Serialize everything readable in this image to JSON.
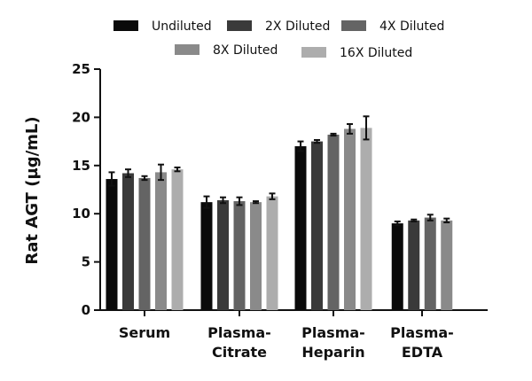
{
  "chart_data": {
    "type": "bar",
    "title": "",
    "xlabel": "",
    "ylabel": "Rat AGT (µg/mL)",
    "ylim": [
      0,
      25
    ],
    "yticks": [
      0,
      5,
      10,
      15,
      20,
      25
    ],
    "categories": [
      [
        "Serum"
      ],
      [
        "Plasma-",
        "Citrate"
      ],
      [
        "Plasma-",
        "Heparin"
      ],
      [
        "Plasma-",
        "EDTA"
      ]
    ],
    "series": [
      {
        "name": "Undiluted",
        "color": "#0a0a0a",
        "values": [
          13.6,
          11.2,
          17.0,
          9.0
        ],
        "errors": [
          0.7,
          0.6,
          0.5,
          0.2
        ]
      },
      {
        "name": "2X Diluted",
        "color": "#3a3a3a",
        "values": [
          14.2,
          11.4,
          17.5,
          9.3
        ],
        "errors": [
          0.4,
          0.3,
          0.15,
          0.1
        ]
      },
      {
        "name": "4X Diluted",
        "color": "#646464",
        "values": [
          13.7,
          11.3,
          18.2,
          9.6
        ],
        "errors": [
          0.2,
          0.4,
          0.1,
          0.3
        ]
      },
      {
        "name": "8X Diluted",
        "color": "#8a8a8a",
        "values": [
          14.3,
          11.2,
          18.8,
          9.3
        ],
        "errors": [
          0.8,
          0.1,
          0.5,
          0.2
        ]
      },
      {
        "name": "16X Diluted",
        "color": "#adadad",
        "values": [
          14.6,
          11.8,
          18.9,
          null
        ],
        "errors": [
          0.2,
          0.3,
          1.2,
          null
        ]
      }
    ],
    "legend_position": "top",
    "grid": false
  }
}
